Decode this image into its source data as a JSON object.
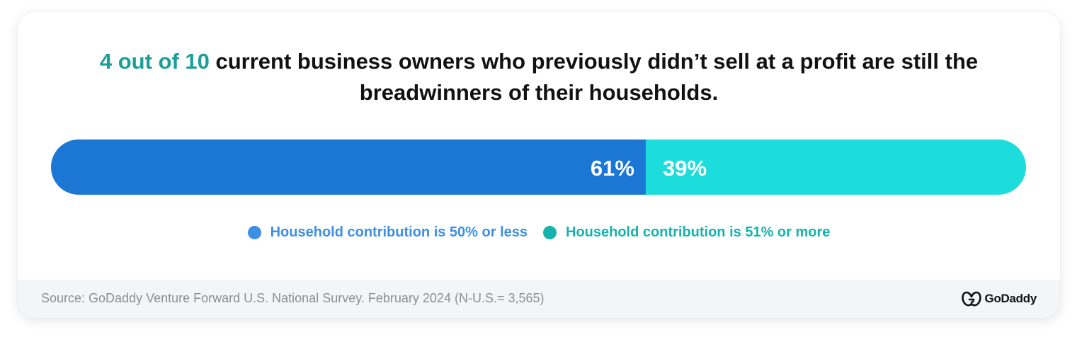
{
  "title": {
    "highlight": "4 out of 10",
    "line1_rest": " current business owners who previously didn’t sell at a profit are still the",
    "line2": "breadwinners of their households."
  },
  "chart_data": {
    "type": "bar",
    "orientation": "horizontal-stacked",
    "series": [
      {
        "name": "Household contribution is 50% or less",
        "value": 61,
        "label": "61%",
        "color": "#1c77d4",
        "legend_color": "#3d8fe6"
      },
      {
        "name": "Household contribution is 51% or more",
        "value": 39,
        "label": "39%",
        "color": "#1ddcdc",
        "legend_color": "#16b3ad"
      }
    ],
    "total": 100,
    "legend_position": "bottom-center"
  },
  "footer": {
    "source": "Source: GoDaddy Venture Forward U.S. National Survey. February 2024 (N-U.S.= 3,565)",
    "logo_text": "GoDaddy",
    "logo_icon": "godaddy-logo-icon"
  }
}
